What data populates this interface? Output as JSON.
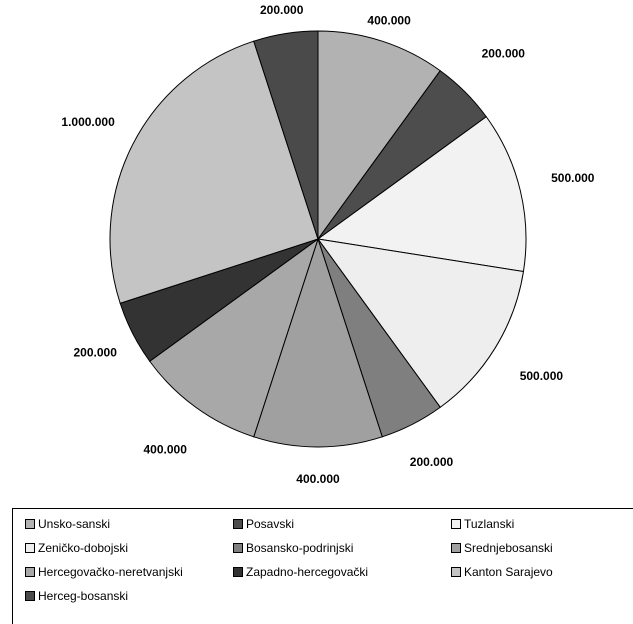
{
  "chart_data": {
    "type": "pie",
    "title": "",
    "legend_position": "bottom",
    "slices": [
      {
        "name": "Unsko-sanski",
        "value": 400000,
        "label": "400.000",
        "color": "#b2b2b2"
      },
      {
        "name": "Posavski",
        "value": 200000,
        "label": "200.000",
        "color": "#4d4d4d"
      },
      {
        "name": "Tuzlanski",
        "value": 500000,
        "label": "500.000",
        "color": "#f2f2f2"
      },
      {
        "name": "Zeničko-dobojski",
        "value": 500000,
        "label": "500.000",
        "color": "#eeeeee"
      },
      {
        "name": "Bosansko-podrinjski",
        "value": 200000,
        "label": "200.000",
        "color": "#7f7f7f"
      },
      {
        "name": "Srednjebosanski",
        "value": 400000,
        "label": "400.000",
        "color": "#a0a0a0"
      },
      {
        "name": "Hercegovačko-neretvanjski",
        "value": 400000,
        "label": "400.000",
        "color": "#a8a8a8"
      },
      {
        "name": "Zapadno-hercegovački",
        "value": 200000,
        "label": "200.000",
        "color": "#333333"
      },
      {
        "name": "Kanton Sarajevo",
        "value": 1000000,
        "label": "1.000.000",
        "color": "#c4c4c4"
      },
      {
        "name": "Herceg-bosanski",
        "value": 200000,
        "label": "200.000",
        "color": "#4a4a4a"
      }
    ]
  }
}
